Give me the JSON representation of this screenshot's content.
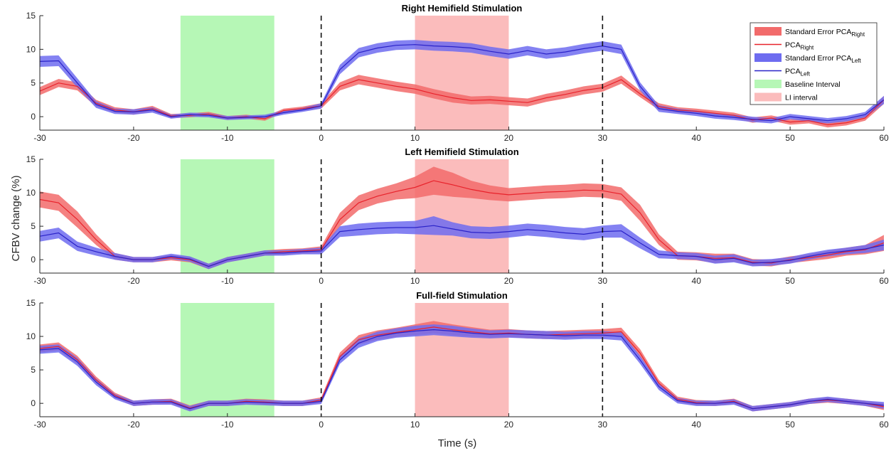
{
  "figure": {
    "xlabel": "Time (s)",
    "ylabel": "CFBV change (%)"
  },
  "colors": {
    "right_line": "#e8222b",
    "right_band": "#f26b6b",
    "left_line": "#2a22c8",
    "left_band": "#6e6cf0",
    "baseline_fill": "#b6f7b6",
    "li_fill": "#fbbcbc",
    "axis": "#262626"
  },
  "legend": {
    "entries": [
      {
        "key": "se_right",
        "text": "Standard Error PCA",
        "sub": "Right",
        "style": "band",
        "color": "#f26b6b"
      },
      {
        "key": "pca_right",
        "text": "PCA",
        "sub": "Right",
        "style": "line",
        "color": "#e8222b"
      },
      {
        "key": "se_left",
        "text": "Standard Error PCA",
        "sub": "Left",
        "style": "band",
        "color": "#6e6cf0"
      },
      {
        "key": "pca_left",
        "text": "PCA",
        "sub": "Left",
        "style": "line",
        "color": "#2a22c8"
      },
      {
        "key": "baseline",
        "text": "Baseline Interval",
        "sub": "",
        "style": "band",
        "color": "#b6f7b6"
      },
      {
        "key": "li",
        "text": "LI interval",
        "sub": "",
        "style": "band",
        "color": "#fbbcbc"
      }
    ]
  },
  "chart_data": [
    {
      "type": "line",
      "title": "Right Hemifield Stimulation",
      "xlim": [
        -30,
        60
      ],
      "ylim": [
        -2,
        15
      ],
      "xticks": [
        -30,
        -20,
        -10,
        0,
        10,
        20,
        30,
        40,
        50,
        60
      ],
      "yticks": [
        0,
        5,
        10,
        15
      ],
      "legend": "top-right",
      "shaded_intervals": [
        {
          "name": "Baseline Interval",
          "x": [
            -15,
            -5
          ],
          "color": "#b6f7b6"
        },
        {
          "name": "LI interval",
          "x": [
            10,
            20
          ],
          "color": "#fbbcbc"
        }
      ],
      "vlines": [
        0,
        30
      ],
      "x": [
        -30,
        -28,
        -26,
        -24,
        -22,
        -20,
        -18,
        -16,
        -14,
        -12,
        -10,
        -8,
        -6,
        -4,
        -2,
        0,
        2,
        4,
        6,
        8,
        10,
        12,
        14,
        16,
        18,
        20,
        22,
        24,
        26,
        28,
        30,
        32,
        34,
        36,
        38,
        40,
        42,
        44,
        46,
        48,
        50,
        52,
        54,
        56,
        58,
        60
      ],
      "series": [
        {
          "name": "PCA_Right",
          "color": "#e8222b",
          "se_color": "#f26b6b",
          "values": [
            3.8,
            5.0,
            4.5,
            2.0,
            1.0,
            0.7,
            1.2,
            0.1,
            0.2,
            0.4,
            -0.2,
            0.0,
            -0.3,
            0.9,
            1.2,
            1.6,
            4.5,
            5.5,
            5.0,
            4.5,
            4.1,
            3.4,
            2.8,
            2.4,
            2.5,
            2.3,
            2.1,
            2.8,
            3.3,
            3.9,
            4.3,
            5.5,
            3.4,
            1.5,
            1.0,
            0.8,
            0.5,
            0.2,
            -0.5,
            -0.2,
            -0.8,
            -0.6,
            -1.2,
            -0.9,
            -0.2,
            2.5
          ],
          "se": [
            0.6,
            0.6,
            0.6,
            0.5,
            0.4,
            0.4,
            0.4,
            0.3,
            0.3,
            0.3,
            0.3,
            0.3,
            0.3,
            0.3,
            0.3,
            0.4,
            0.6,
            0.7,
            0.7,
            0.7,
            0.7,
            0.7,
            0.7,
            0.6,
            0.6,
            0.6,
            0.6,
            0.6,
            0.6,
            0.6,
            0.6,
            0.6,
            0.5,
            0.5,
            0.4,
            0.4,
            0.4,
            0.4,
            0.4,
            0.4,
            0.4,
            0.4,
            0.4,
            0.4,
            0.4,
            0.6
          ]
        },
        {
          "name": "PCA_Left",
          "color": "#2a22c8",
          "se_color": "#6e6cf0",
          "values": [
            8.2,
            8.3,
            5.0,
            1.8,
            0.8,
            0.7,
            1.0,
            0.0,
            0.3,
            0.2,
            -0.2,
            -0.1,
            0.0,
            0.6,
            1.0,
            1.6,
            7.0,
            9.5,
            10.2,
            10.6,
            10.7,
            10.5,
            10.4,
            10.2,
            9.7,
            9.3,
            9.8,
            9.3,
            9.6,
            10.1,
            10.5,
            10.0,
            4.5,
            1.2,
            0.8,
            0.5,
            0.1,
            -0.1,
            -0.4,
            -0.6,
            0.0,
            -0.3,
            -0.6,
            -0.3,
            0.3,
            2.5
          ],
          "se": [
            0.8,
            0.8,
            0.7,
            0.5,
            0.4,
            0.4,
            0.4,
            0.3,
            0.3,
            0.3,
            0.3,
            0.3,
            0.3,
            0.3,
            0.3,
            0.4,
            0.7,
            0.7,
            0.7,
            0.7,
            0.7,
            0.7,
            0.7,
            0.7,
            0.7,
            0.7,
            0.7,
            0.7,
            0.7,
            0.7,
            0.7,
            0.7,
            0.6,
            0.5,
            0.4,
            0.4,
            0.4,
            0.4,
            0.4,
            0.4,
            0.4,
            0.4,
            0.4,
            0.4,
            0.4,
            0.6
          ]
        }
      ]
    },
    {
      "type": "line",
      "title": "Left Hemifield Stimulation",
      "xlim": [
        -30,
        60
      ],
      "ylim": [
        -2,
        15
      ],
      "xticks": [
        -30,
        -20,
        -10,
        0,
        10,
        20,
        30,
        40,
        50,
        60
      ],
      "yticks": [
        0,
        5,
        10,
        15
      ],
      "shaded_intervals": [
        {
          "name": "Baseline Interval",
          "x": [
            -15,
            -5
          ],
          "color": "#b6f7b6"
        },
        {
          "name": "LI interval",
          "x": [
            10,
            20
          ],
          "color": "#fbbcbc"
        }
      ],
      "vlines": [
        0,
        30
      ],
      "x": [
        -30,
        -28,
        -26,
        -24,
        -22,
        -20,
        -18,
        -16,
        -14,
        -12,
        -10,
        -8,
        -6,
        -4,
        -2,
        0,
        2,
        4,
        6,
        8,
        10,
        12,
        14,
        16,
        18,
        20,
        22,
        24,
        26,
        28,
        30,
        32,
        34,
        36,
        38,
        40,
        42,
        44,
        46,
        48,
        50,
        52,
        54,
        56,
        58,
        60
      ],
      "series": [
        {
          "name": "PCA_Right",
          "color": "#e8222b",
          "se_color": "#f26b6b",
          "values": [
            9.0,
            8.5,
            6.0,
            3.0,
            0.5,
            0.0,
            0.0,
            0.3,
            0.0,
            -1.0,
            0.0,
            0.5,
            1.0,
            1.2,
            1.3,
            1.5,
            6.0,
            8.5,
            9.5,
            10.2,
            10.8,
            11.8,
            11.2,
            10.5,
            10.0,
            9.7,
            9.9,
            10.1,
            10.2,
            10.4,
            10.3,
            9.8,
            7.0,
            3.0,
            0.6,
            0.5,
            0.2,
            0.3,
            -0.4,
            -0.5,
            0.0,
            0.3,
            0.7,
            1.2,
            1.5,
            2.5
          ],
          "se": [
            1.2,
            1.2,
            1.2,
            0.8,
            0.5,
            0.4,
            0.4,
            0.4,
            0.4,
            0.4,
            0.4,
            0.4,
            0.4,
            0.4,
            0.4,
            0.5,
            1.0,
            1.1,
            1.1,
            1.2,
            1.6,
            2.1,
            1.8,
            1.3,
            1.1,
            1.0,
            1.0,
            1.0,
            1.0,
            1.0,
            1.0,
            1.0,
            1.2,
            0.8,
            0.6,
            0.6,
            0.7,
            0.6,
            0.5,
            0.5,
            0.5,
            0.5,
            0.6,
            0.6,
            0.7,
            1.2
          ]
        },
        {
          "name": "PCA_Left",
          "color": "#2a22c8",
          "se_color": "#6e6cf0",
          "values": [
            3.5,
            4.0,
            2.0,
            1.2,
            0.5,
            0.0,
            0.0,
            0.5,
            0.1,
            -1.0,
            0.0,
            0.5,
            1.0,
            1.0,
            1.2,
            1.3,
            4.2,
            4.5,
            4.7,
            4.8,
            4.8,
            5.1,
            4.6,
            4.1,
            4.0,
            4.2,
            4.5,
            4.3,
            4.0,
            3.8,
            4.2,
            4.3,
            2.5,
            0.8,
            0.6,
            0.5,
            0.0,
            0.2,
            -0.5,
            -0.4,
            -0.1,
            0.5,
            1.0,
            1.3,
            1.6,
            2.2
          ],
          "se": [
            0.8,
            0.8,
            0.7,
            0.6,
            0.5,
            0.4,
            0.4,
            0.4,
            0.4,
            0.4,
            0.4,
            0.4,
            0.4,
            0.4,
            0.4,
            0.5,
            0.8,
            0.9,
            0.9,
            0.9,
            1.0,
            1.4,
            1.0,
            0.9,
            0.9,
            0.9,
            0.9,
            0.9,
            0.9,
            0.9,
            0.9,
            1.0,
            0.8,
            0.6,
            0.5,
            0.5,
            0.6,
            0.6,
            0.5,
            0.5,
            0.5,
            0.5,
            0.5,
            0.5,
            0.6,
            0.8
          ]
        }
      ]
    },
    {
      "type": "line",
      "title": "Full-field Stimulation",
      "xlim": [
        -30,
        60
      ],
      "ylim": [
        -2,
        15
      ],
      "xticks": [
        -30,
        -20,
        -10,
        0,
        10,
        20,
        30,
        40,
        50,
        60
      ],
      "yticks": [
        0,
        5,
        10,
        15
      ],
      "shaded_intervals": [
        {
          "name": "Baseline Interval",
          "x": [
            -15,
            -5
          ],
          "color": "#b6f7b6"
        },
        {
          "name": "LI interval",
          "x": [
            10,
            20
          ],
          "color": "#fbbcbc"
        }
      ],
      "vlines": [
        0,
        30
      ],
      "x": [
        -30,
        -28,
        -26,
        -24,
        -22,
        -20,
        -18,
        -16,
        -14,
        -12,
        -10,
        -8,
        -6,
        -4,
        -2,
        0,
        2,
        4,
        6,
        8,
        10,
        12,
        14,
        16,
        18,
        20,
        22,
        24,
        26,
        28,
        30,
        32,
        34,
        36,
        38,
        40,
        42,
        44,
        46,
        48,
        50,
        52,
        54,
        56,
        58,
        60
      ],
      "series": [
        {
          "name": "PCA_Right",
          "color": "#e8222b",
          "se_color": "#f26b6b",
          "values": [
            8.2,
            8.5,
            6.5,
            3.5,
            1.2,
            0.0,
            0.2,
            0.3,
            -0.7,
            0.0,
            0.0,
            0.3,
            0.2,
            0.0,
            0.0,
            0.5,
            7.0,
            9.5,
            10.2,
            10.6,
            11.0,
            11.4,
            11.0,
            10.7,
            10.4,
            10.5,
            10.3,
            10.2,
            10.3,
            10.4,
            10.5,
            10.7,
            7.5,
            3.0,
            0.6,
            0.1,
            0.0,
            0.3,
            -0.8,
            -0.5,
            -0.2,
            0.3,
            0.5,
            0.3,
            0.0,
            -0.5
          ],
          "se": [
            0.6,
            0.6,
            0.6,
            0.5,
            0.4,
            0.4,
            0.4,
            0.4,
            0.4,
            0.4,
            0.4,
            0.4,
            0.4,
            0.4,
            0.4,
            0.4,
            0.6,
            0.7,
            0.7,
            0.7,
            0.8,
            0.9,
            0.8,
            0.7,
            0.6,
            0.6,
            0.6,
            0.6,
            0.6,
            0.6,
            0.6,
            0.6,
            0.6,
            0.5,
            0.4,
            0.4,
            0.4,
            0.4,
            0.4,
            0.4,
            0.4,
            0.4,
            0.4,
            0.4,
            0.4,
            0.5
          ]
        },
        {
          "name": "PCA_Left",
          "color": "#2a22c8",
          "se_color": "#6e6cf0",
          "values": [
            8.0,
            8.2,
            6.2,
            3.2,
            1.0,
            0.0,
            0.2,
            0.2,
            -0.8,
            0.0,
            0.0,
            0.2,
            0.1,
            0.0,
            0.0,
            0.3,
            6.5,
            9.0,
            10.0,
            10.5,
            10.8,
            11.0,
            10.8,
            10.5,
            10.3,
            10.4,
            10.3,
            10.2,
            10.1,
            10.2,
            10.2,
            10.0,
            6.5,
            2.5,
            0.4,
            0.0,
            0.0,
            0.2,
            -0.8,
            -0.5,
            -0.2,
            0.3,
            0.6,
            0.3,
            0.0,
            -0.3
          ],
          "se": [
            0.6,
            0.6,
            0.6,
            0.5,
            0.4,
            0.4,
            0.4,
            0.4,
            0.4,
            0.4,
            0.4,
            0.4,
            0.4,
            0.4,
            0.4,
            0.4,
            0.6,
            0.7,
            0.7,
            0.7,
            0.8,
            0.8,
            0.8,
            0.7,
            0.6,
            0.6,
            0.6,
            0.6,
            0.6,
            0.6,
            0.6,
            0.6,
            0.6,
            0.5,
            0.4,
            0.4,
            0.4,
            0.4,
            0.4,
            0.4,
            0.4,
            0.4,
            0.4,
            0.4,
            0.4,
            0.5
          ]
        }
      ]
    }
  ]
}
